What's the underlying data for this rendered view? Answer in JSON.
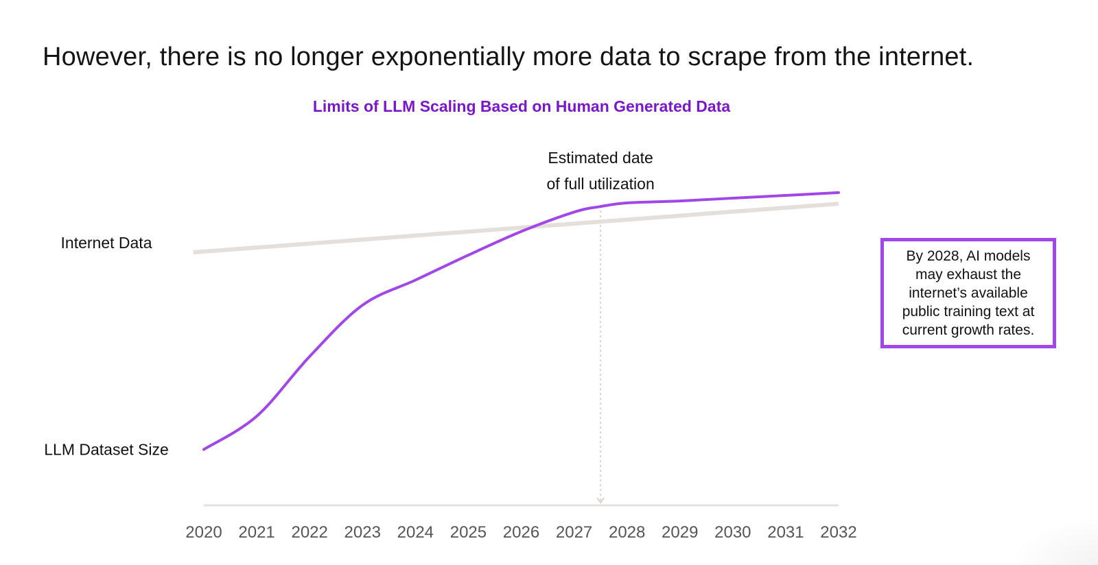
{
  "page": {
    "heading": "However, there is no longer exponentially more data to scrape from the internet."
  },
  "callout": {
    "text": "By 2028, AI models may exhaust the internet’s available public training text at current growth rates."
  },
  "colors": {
    "accent_purple": "#a146e8",
    "title_purple": "#7a16cc",
    "internet_line": "#e4dfdb",
    "axis_line": "#e4dfdb",
    "marker_line": "#d8d4d0"
  },
  "chart_data": {
    "type": "line",
    "title": "Limits of LLM Scaling Based on Human Generated Data",
    "xlabel": "",
    "ylabel": "",
    "x_ticks": [
      "2020",
      "2021",
      "2022",
      "2023",
      "2024",
      "2025",
      "2026",
      "2027",
      "2028",
      "2029",
      "2030",
      "2031",
      "2032"
    ],
    "xlim": [
      2020,
      2032
    ],
    "ylim": [
      0,
      100
    ],
    "y_axis_labels": "none",
    "grid": false,
    "legend": "none",
    "series_label_placement": "left of lines",
    "series": [
      {
        "name": "Internet Data",
        "x": [
          2019.8,
          2032
        ],
        "values": [
          80,
          97.5
        ]
      },
      {
        "name": "LLM Dataset Size",
        "x": [
          2020,
          2021,
          2022,
          2023,
          2024,
          2025,
          2026,
          2027,
          2027.5,
          2028,
          2029,
          2030,
          2031,
          2032
        ],
        "values": [
          9,
          21,
          42.5,
          61,
          70,
          79,
          87.5,
          94.5,
          96.5,
          97.8,
          98.5,
          99.5,
          100.5,
          101.5
        ]
      }
    ],
    "annotations": [
      {
        "type": "vertical-marker",
        "x": 2027.5,
        "text_lines": [
          "Estimated date",
          "of full utilization"
        ]
      }
    ]
  }
}
